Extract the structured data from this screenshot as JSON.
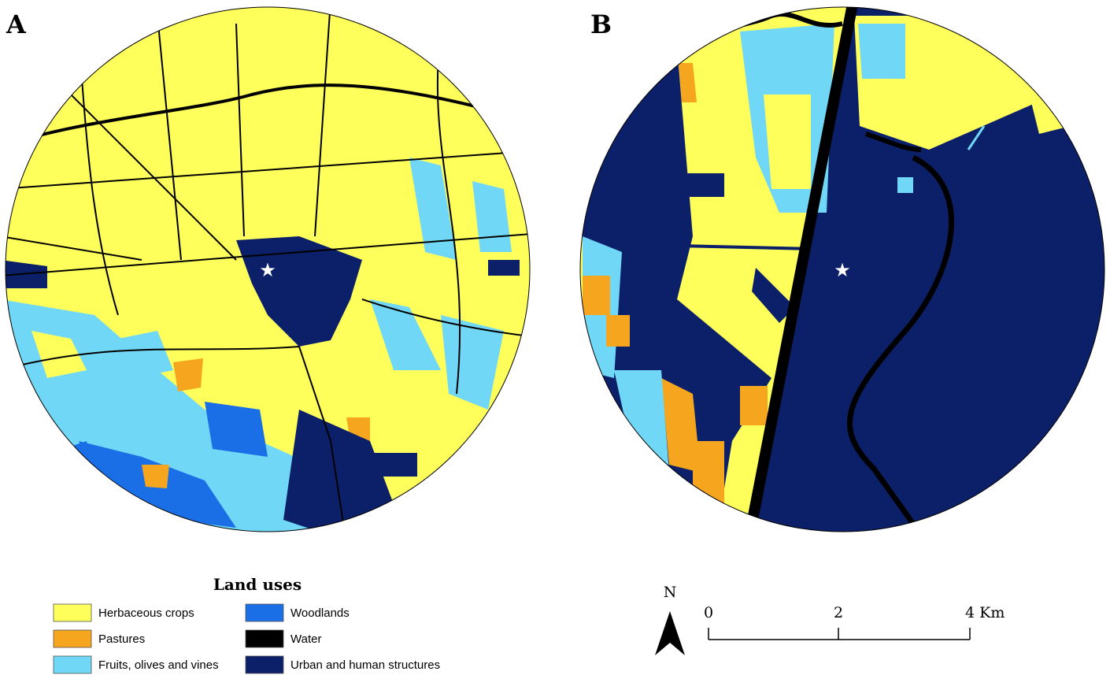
{
  "panels": [
    {
      "label": "A"
    },
    {
      "label": "B"
    }
  ],
  "legend": {
    "title": "Land uses",
    "items": [
      {
        "label": "Herbaceous crops",
        "color": "#ffff5c"
      },
      {
        "label": "Pastures",
        "color": "#f6a51e"
      },
      {
        "label": "Fruits, olives and vines",
        "color": "#70d7f6"
      },
      {
        "label": "Woodlands",
        "color": "#1a6fe6"
      },
      {
        "label": "Water",
        "color": "#000000"
      },
      {
        "label": "Urban and human structures",
        "color": "#0b2069"
      }
    ]
  },
  "north_label": "N",
  "scale_bar": {
    "labels": [
      "0",
      "2",
      "4 Km"
    ]
  }
}
